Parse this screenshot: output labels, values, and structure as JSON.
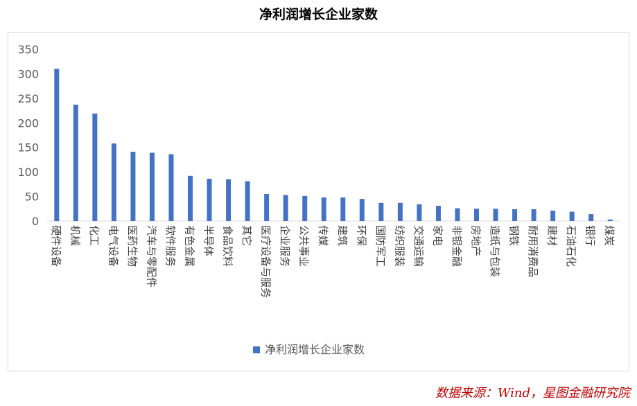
{
  "title": "净利润增长企业家数",
  "source": "数据来源：Wind，星图金融研究院",
  "chart_data": {
    "type": "bar",
    "title": "净利润增长企业家数",
    "categories": [
      "硬件设备",
      "机械",
      "化工",
      "电气设备",
      "医药生物",
      "汽车与零配件",
      "软件服务",
      "有色金属",
      "半导体",
      "食品饮料",
      "其它",
      "医疗设备与服务",
      "企业服务",
      "公共事业",
      "传媒",
      "建筑",
      "环保",
      "国防军工",
      "纺织服装",
      "交通运输",
      "家电",
      "非银金融",
      "房地产",
      "造纸与包装",
      "钢铁",
      "耐用消费品",
      "建材",
      "石油石化",
      "银行",
      "煤炭"
    ],
    "series": [
      {
        "name": "净利润增长企业家数",
        "color": "#4472c4",
        "values": [
          310,
          237,
          219,
          158,
          141,
          139,
          136,
          92,
          86,
          85,
          81,
          55,
          53,
          51,
          48,
          48,
          45,
          37,
          37,
          34,
          31,
          26,
          25,
          25,
          24,
          24,
          21,
          19,
          14,
          3
        ]
      }
    ],
    "ylim": [
      0,
      350
    ],
    "yticks": [
      0,
      50,
      100,
      150,
      200,
      250,
      300,
      350
    ],
    "grid": false,
    "legend": "bottom-center"
  }
}
